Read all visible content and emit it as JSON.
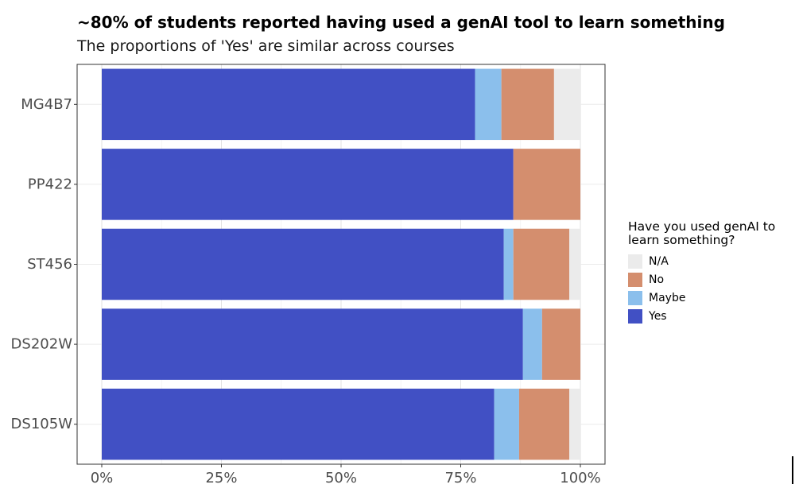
{
  "chart_data": {
    "type": "bar",
    "orientation": "horizontal",
    "stacked": true,
    "title": "~80% of students reported having used a genAI tool to learn something",
    "subtitle": "The proportions of 'Yes' are similar across courses",
    "categories": [
      "MG4B7",
      "PP422",
      "ST456",
      "DS202W",
      "DS105W"
    ],
    "series": [
      {
        "name": "Yes",
        "color": "#4150C4",
        "values": [
          78,
          86,
          84,
          88,
          82
        ]
      },
      {
        "name": "Maybe",
        "color": "#8BBFEC",
        "values": [
          5.5,
          0,
          2,
          4,
          5.2
        ]
      },
      {
        "name": "No",
        "color": "#D48E6E",
        "values": [
          11,
          14,
          11.7,
          8,
          10.5
        ]
      },
      {
        "name": "N/A",
        "color": "#EBEBEB",
        "values": [
          5.5,
          0,
          2.3,
          0,
          2.3
        ]
      }
    ],
    "xlim": [
      0,
      100
    ],
    "x_ticks": [
      "0%",
      "25%",
      "50%",
      "75%",
      "100%"
    ],
    "grid": true,
    "legend": {
      "title": "Have you used genAI to learn something?",
      "position": "right",
      "order": [
        "N/A",
        "No",
        "Maybe",
        "Yes"
      ]
    }
  }
}
